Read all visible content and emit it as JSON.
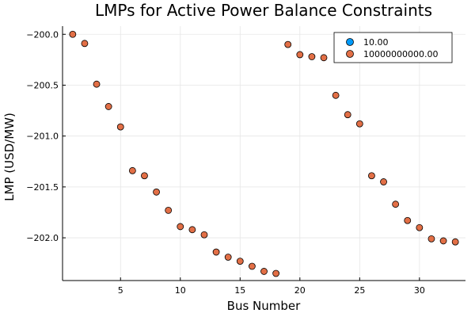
{
  "chart_data": {
    "type": "scatter",
    "title": "LMPs for Active Power Balance Constraints",
    "xlabel": "Bus Number",
    "ylabel": "LMP (USD/MW)",
    "xlim": [
      0.15,
      33.85
    ],
    "ylim": [
      -202.42,
      -199.92
    ],
    "xticks": [
      5,
      10,
      15,
      20,
      25,
      30
    ],
    "yticks": [
      -200.0,
      -200.5,
      -201.0,
      -201.5,
      -202.0
    ],
    "xtick_labels": [
      "5",
      "10",
      "15",
      "20",
      "25",
      "30"
    ],
    "ytick_labels": [
      "−200.0",
      "−200.5",
      "−201.0",
      "−201.5",
      "−202.0"
    ],
    "grid": true,
    "legend_position": "top-right",
    "series": [
      {
        "name": "10.00",
        "color": "#009AFA",
        "x": [],
        "y": []
      },
      {
        "name": "10000000000.00",
        "color": "#E26F46",
        "x": [
          1,
          2,
          3,
          4,
          5,
          6,
          7,
          8,
          9,
          10,
          11,
          12,
          13,
          14,
          15,
          16,
          17,
          18,
          19,
          20,
          21,
          22,
          23,
          24,
          25,
          26,
          27,
          28,
          29,
          30,
          31,
          32,
          33
        ],
        "y": [
          -200.0,
          -200.09,
          -200.49,
          -200.71,
          -200.91,
          -201.34,
          -201.39,
          -201.55,
          -201.73,
          -201.89,
          -201.92,
          -201.97,
          -202.14,
          -202.19,
          -202.23,
          -202.28,
          -202.33,
          -202.35,
          -200.1,
          -200.2,
          -200.22,
          -200.23,
          -200.6,
          -200.79,
          -200.88,
          -201.39,
          -201.45,
          -201.67,
          -201.83,
          -201.9,
          -202.01,
          -202.03,
          -202.04
        ]
      }
    ]
  }
}
